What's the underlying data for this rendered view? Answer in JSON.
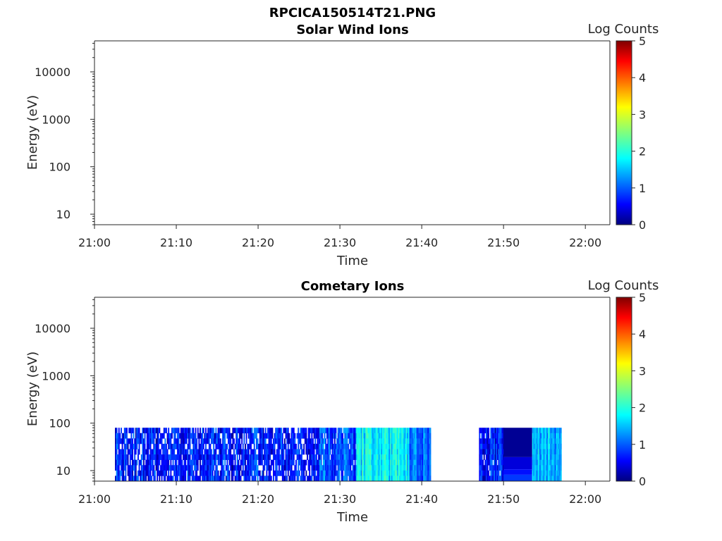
{
  "figure_title": "RPCICA150514T21.PNG",
  "chart_data": [
    {
      "type": "heatmap",
      "title": "Solar Wind Ions",
      "xlabel": "Time",
      "ylabel": "Energy (eV)",
      "x_ticks": [
        "21:00",
        "21:10",
        "21:20",
        "21:30",
        "21:40",
        "21:50",
        "22:00"
      ],
      "xlim": [
        "21:00",
        "22:03"
      ],
      "y_scale": "log",
      "y_ticks": [
        "10",
        "100",
        "1000",
        "10000"
      ],
      "ylim": [
        6,
        45000
      ],
      "colorbar": {
        "label": "Log Counts",
        "range": [
          0,
          5
        ],
        "ticks": [
          "0",
          "1",
          "2",
          "3",
          "4",
          "5"
        ],
        "colormap": "jet"
      },
      "blocks": []
    },
    {
      "type": "heatmap",
      "title": "Cometary Ions",
      "xlabel": "Time",
      "ylabel": "Energy (eV)",
      "x_ticks": [
        "21:00",
        "21:10",
        "21:20",
        "21:30",
        "21:40",
        "21:50",
        "22:00"
      ],
      "xlim": [
        "21:00",
        "22:03"
      ],
      "y_scale": "log",
      "y_ticks": [
        "10",
        "100",
        "1000",
        "10000"
      ],
      "ylim": [
        6,
        45000
      ],
      "colorbar": {
        "label": "Log Counts",
        "range": [
          0,
          5
        ],
        "ticks": [
          "0",
          "1",
          "2",
          "3",
          "4",
          "5"
        ],
        "colormap": "jet"
      },
      "blocks": [
        {
          "t_start": "21:02:30",
          "t_end": "21:27:30",
          "e_min": 6,
          "e_max": 80,
          "log_counts": 0.7,
          "pattern": "sparse-noise"
        },
        {
          "t_start": "21:27:30",
          "t_end": "21:32:00",
          "e_min": 6,
          "e_max": 80,
          "log_counts": 1.0,
          "pattern": "noise"
        },
        {
          "t_start": "21:32:00",
          "t_end": "21:38:30",
          "e_min": 6,
          "e_max": 80,
          "log_counts": 1.8,
          "pattern": "dense"
        },
        {
          "t_start": "21:38:30",
          "t_end": "21:41:00",
          "e_min": 6,
          "e_max": 80,
          "log_counts": 1.2,
          "pattern": "dense"
        },
        {
          "t_start": "21:47:00",
          "t_end": "21:50:00",
          "e_min": 6,
          "e_max": 80,
          "log_counts": 0.7,
          "pattern": "noise"
        },
        {
          "t_start": "21:50:00",
          "t_end": "21:53:30",
          "e_min": 6,
          "e_max": 80,
          "log_counts": 0.1,
          "pattern": "banded"
        },
        {
          "t_start": "21:53:30",
          "t_end": "21:57:00",
          "e_min": 6,
          "e_max": 80,
          "log_counts": 1.5,
          "pattern": "dense"
        }
      ]
    }
  ]
}
